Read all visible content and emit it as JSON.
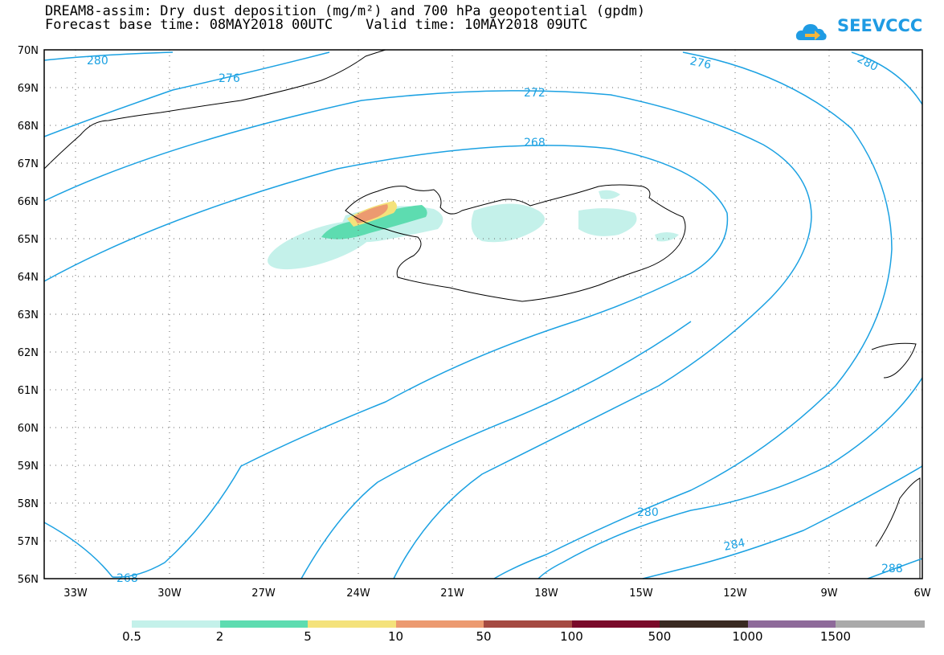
{
  "header": {
    "title_line1": "DREAM8-assim: Dry dust deposition (mg/m²) and 700 hPa geopotential (gpdm)",
    "title_line2": "Forecast base time: 08MAY2018 00UTC    Valid time: 10MAY2018 09UTC",
    "logo_text": "SEEVCCC",
    "logo_icon": "cloud-arrow-icon"
  },
  "map": {
    "latitude_labels": [
      "70N",
      "69N",
      "68N",
      "67N",
      "66N",
      "65N",
      "64N",
      "63N",
      "62N",
      "61N",
      "60N",
      "59N",
      "58N",
      "57N",
      "56N"
    ],
    "longitude_labels": [
      "33W",
      "30W",
      "27W",
      "24W",
      "21W",
      "18W",
      "15W",
      "12W",
      "9W",
      "6W"
    ],
    "contour_labels": [
      "280",
      "276",
      "272",
      "268",
      "276",
      "280",
      "268",
      "280",
      "284",
      "288"
    ],
    "contour_color": "#1ba1e2",
    "land_outline_color": "#000000"
  },
  "colorbar": {
    "labels": [
      "0.5",
      "2",
      "5",
      "10",
      "50",
      "100",
      "500",
      "1000",
      "1500"
    ],
    "colors": [
      "#c4f1ea",
      "#5ddcb0",
      "#f4e27b",
      "#ec9a70",
      "#a54a42",
      "#7a0a2a",
      "#3a2a22",
      "#8e6a9a",
      "#aaaaaa"
    ]
  }
}
